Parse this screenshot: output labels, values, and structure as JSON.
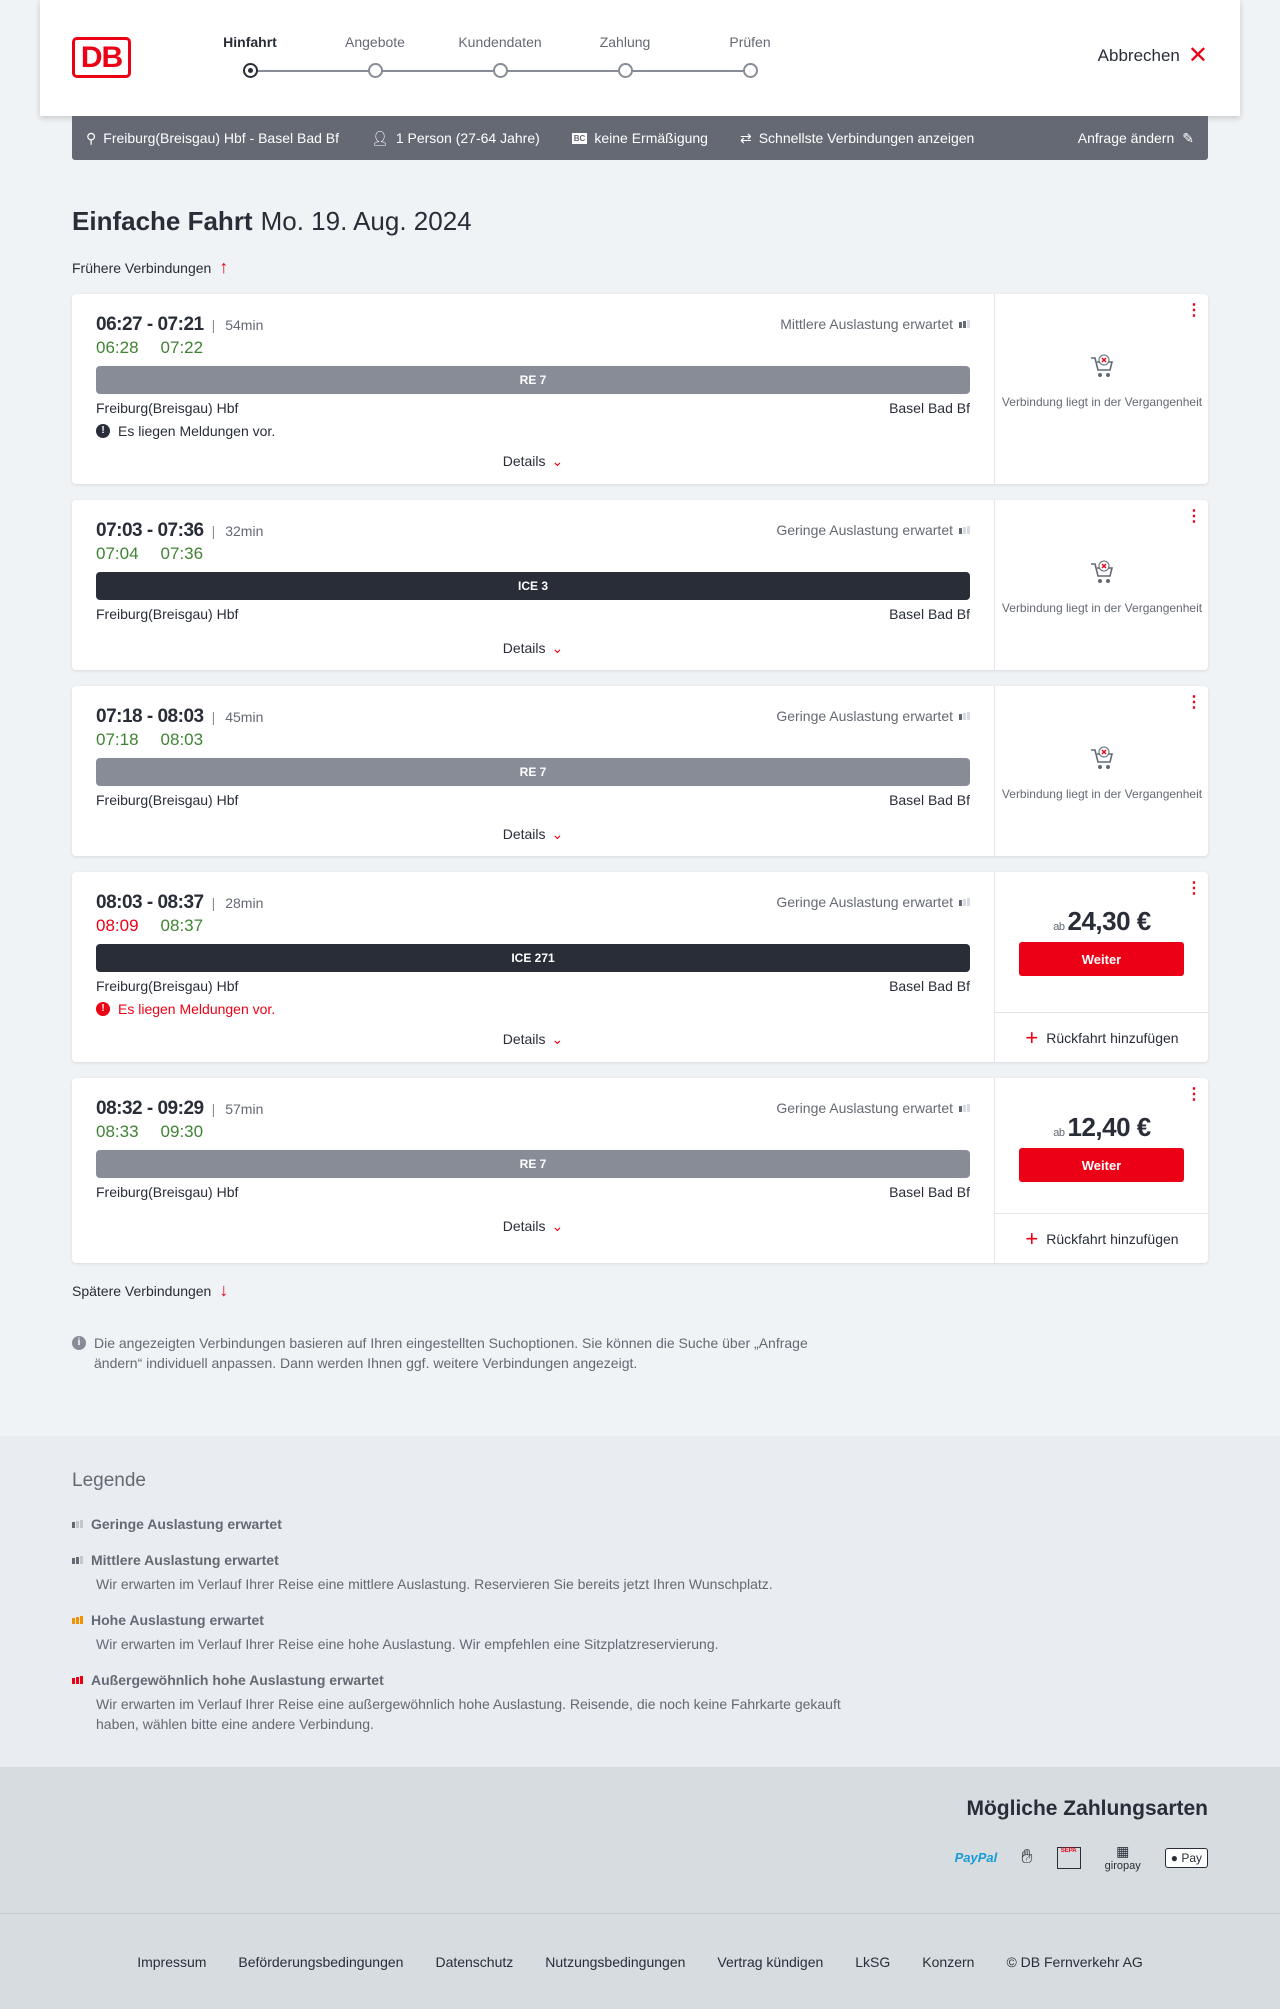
{
  "header": {
    "logo": "DB",
    "steps": [
      "Hinfahrt",
      "Angebote",
      "Kundendaten",
      "Zahlung",
      "Prüfen"
    ],
    "active_step": 0,
    "cancel": "Abbrechen"
  },
  "infobar": {
    "route": "Freiburg(Breisgau) Hbf - Basel Bad Bf",
    "passengers": "1 Person (27-64 Jahre)",
    "discount_icon": "BC",
    "discount": "keine Ermäßigung",
    "fastest": "Schnellste Verbindungen anzeigen",
    "edit": "Anfrage ändern"
  },
  "title": {
    "bold": "Einfache Fahrt",
    "date": "Mo. 19. Aug. 2024"
  },
  "earlier": "Frühere Verbindungen",
  "later": "Spätere Verbindungen",
  "details_label": "Details",
  "connections": [
    {
      "time": "06:27 - 07:21",
      "duration": "54min",
      "rt_dep": "06:28",
      "rt_arr": "07:22",
      "dep_late": false,
      "load": "Mittlere Auslastung erwartet",
      "load_level": 2,
      "train": "RE 7",
      "train_type": "re",
      "from": "Freiburg(Breisgau) Hbf",
      "to": "Basel Bad Bf",
      "message": "Es liegen Meldungen vor.",
      "message_red": false,
      "past": "Verbindung liegt in der Vergangenheit"
    },
    {
      "time": "07:03 - 07:36",
      "duration": "32min",
      "rt_dep": "07:04",
      "rt_arr": "07:36",
      "dep_late": false,
      "load": "Geringe Auslastung erwartet",
      "load_level": 1,
      "train": "ICE 3",
      "train_type": "ice",
      "from": "Freiburg(Breisgau) Hbf",
      "to": "Basel Bad Bf",
      "past": "Verbindung liegt in der Vergangenheit"
    },
    {
      "time": "07:18 - 08:03",
      "duration": "45min",
      "rt_dep": "07:18",
      "rt_arr": "08:03",
      "dep_late": false,
      "load": "Geringe Auslastung erwartet",
      "load_level": 1,
      "train": "RE 7",
      "train_type": "re",
      "from": "Freiburg(Breisgau) Hbf",
      "to": "Basel Bad Bf",
      "past": "Verbindung liegt in der Vergangenheit"
    },
    {
      "time": "08:03 - 08:37",
      "duration": "28min",
      "rt_dep": "08:09",
      "rt_arr": "08:37",
      "dep_late": true,
      "load": "Geringe Auslastung erwartet",
      "load_level": 1,
      "train": "ICE 271",
      "train_type": "ice",
      "from": "Freiburg(Breisgau) Hbf",
      "to": "Basel Bad Bf",
      "message": "Es liegen Meldungen vor.",
      "message_red": true,
      "price_prefix": "ab",
      "price": "24,30 €",
      "button": "Weiter",
      "return": "Rückfahrt hinzufügen"
    },
    {
      "time": "08:32 - 09:29",
      "duration": "57min",
      "rt_dep": "08:33",
      "rt_arr": "09:30",
      "dep_late": false,
      "load": "Geringe Auslastung erwartet",
      "load_level": 1,
      "train": "RE 7",
      "train_type": "re",
      "from": "Freiburg(Breisgau) Hbf",
      "to": "Basel Bad Bf",
      "price_prefix": "ab",
      "price": "12,40 €",
      "button": "Weiter",
      "return": "Rückfahrt hinzufügen"
    }
  ],
  "note": "Die angezeigten Verbindungen basieren auf Ihren eingestellten Suchoptionen. Sie können die Suche über „Anfrage ändern“ individuell anpassen. Dann werden Ihnen ggf. weitere Verbindungen angezeigt.",
  "legend": {
    "title": "Legende",
    "items": [
      {
        "title": "Geringe Auslastung erwartet",
        "text": ""
      },
      {
        "title": "Mittlere Auslastung erwartet",
        "text": "Wir erwarten im Verlauf Ihrer Reise eine mittlere Auslastung. Reservieren Sie bereits jetzt Ihren Wunschplatz."
      },
      {
        "title": "Hohe Auslastung erwartet",
        "text": "Wir erwarten im Verlauf Ihrer Reise eine hohe Auslastung. Wir empfehlen eine Sitzplatzreservierung."
      },
      {
        "title": "Außergewöhnlich hohe Auslastung erwartet",
        "text": "Wir erwarten im Verlauf Ihrer Reise eine außergewöhnlich hohe Auslastung. Reisende, die noch keine Fahrkarte gekauft haben, wählen bitte eine andere Verbindung."
      }
    ],
    "colors": [
      "#646973",
      "#646973",
      "#f39200",
      "#ec0016"
    ]
  },
  "payment": {
    "title": "Mögliche Zahlungsarten",
    "methods": [
      "PayPal",
      "Kreditkarte",
      "SEPA",
      "giropay",
      "Apple Pay"
    ],
    "paypal_a": "Pay",
    "paypal_b": "Pal",
    "sepa": "SEPA",
    "giropay": "giropay",
    "applepay": " Pay"
  },
  "footer": [
    "Impressum",
    "Beförderungsbedingungen",
    "Datenschutz",
    "Nutzungsbedingungen",
    "Vertrag kündigen",
    "LkSG",
    "Konzern",
    "© DB Fernverkehr AG"
  ]
}
